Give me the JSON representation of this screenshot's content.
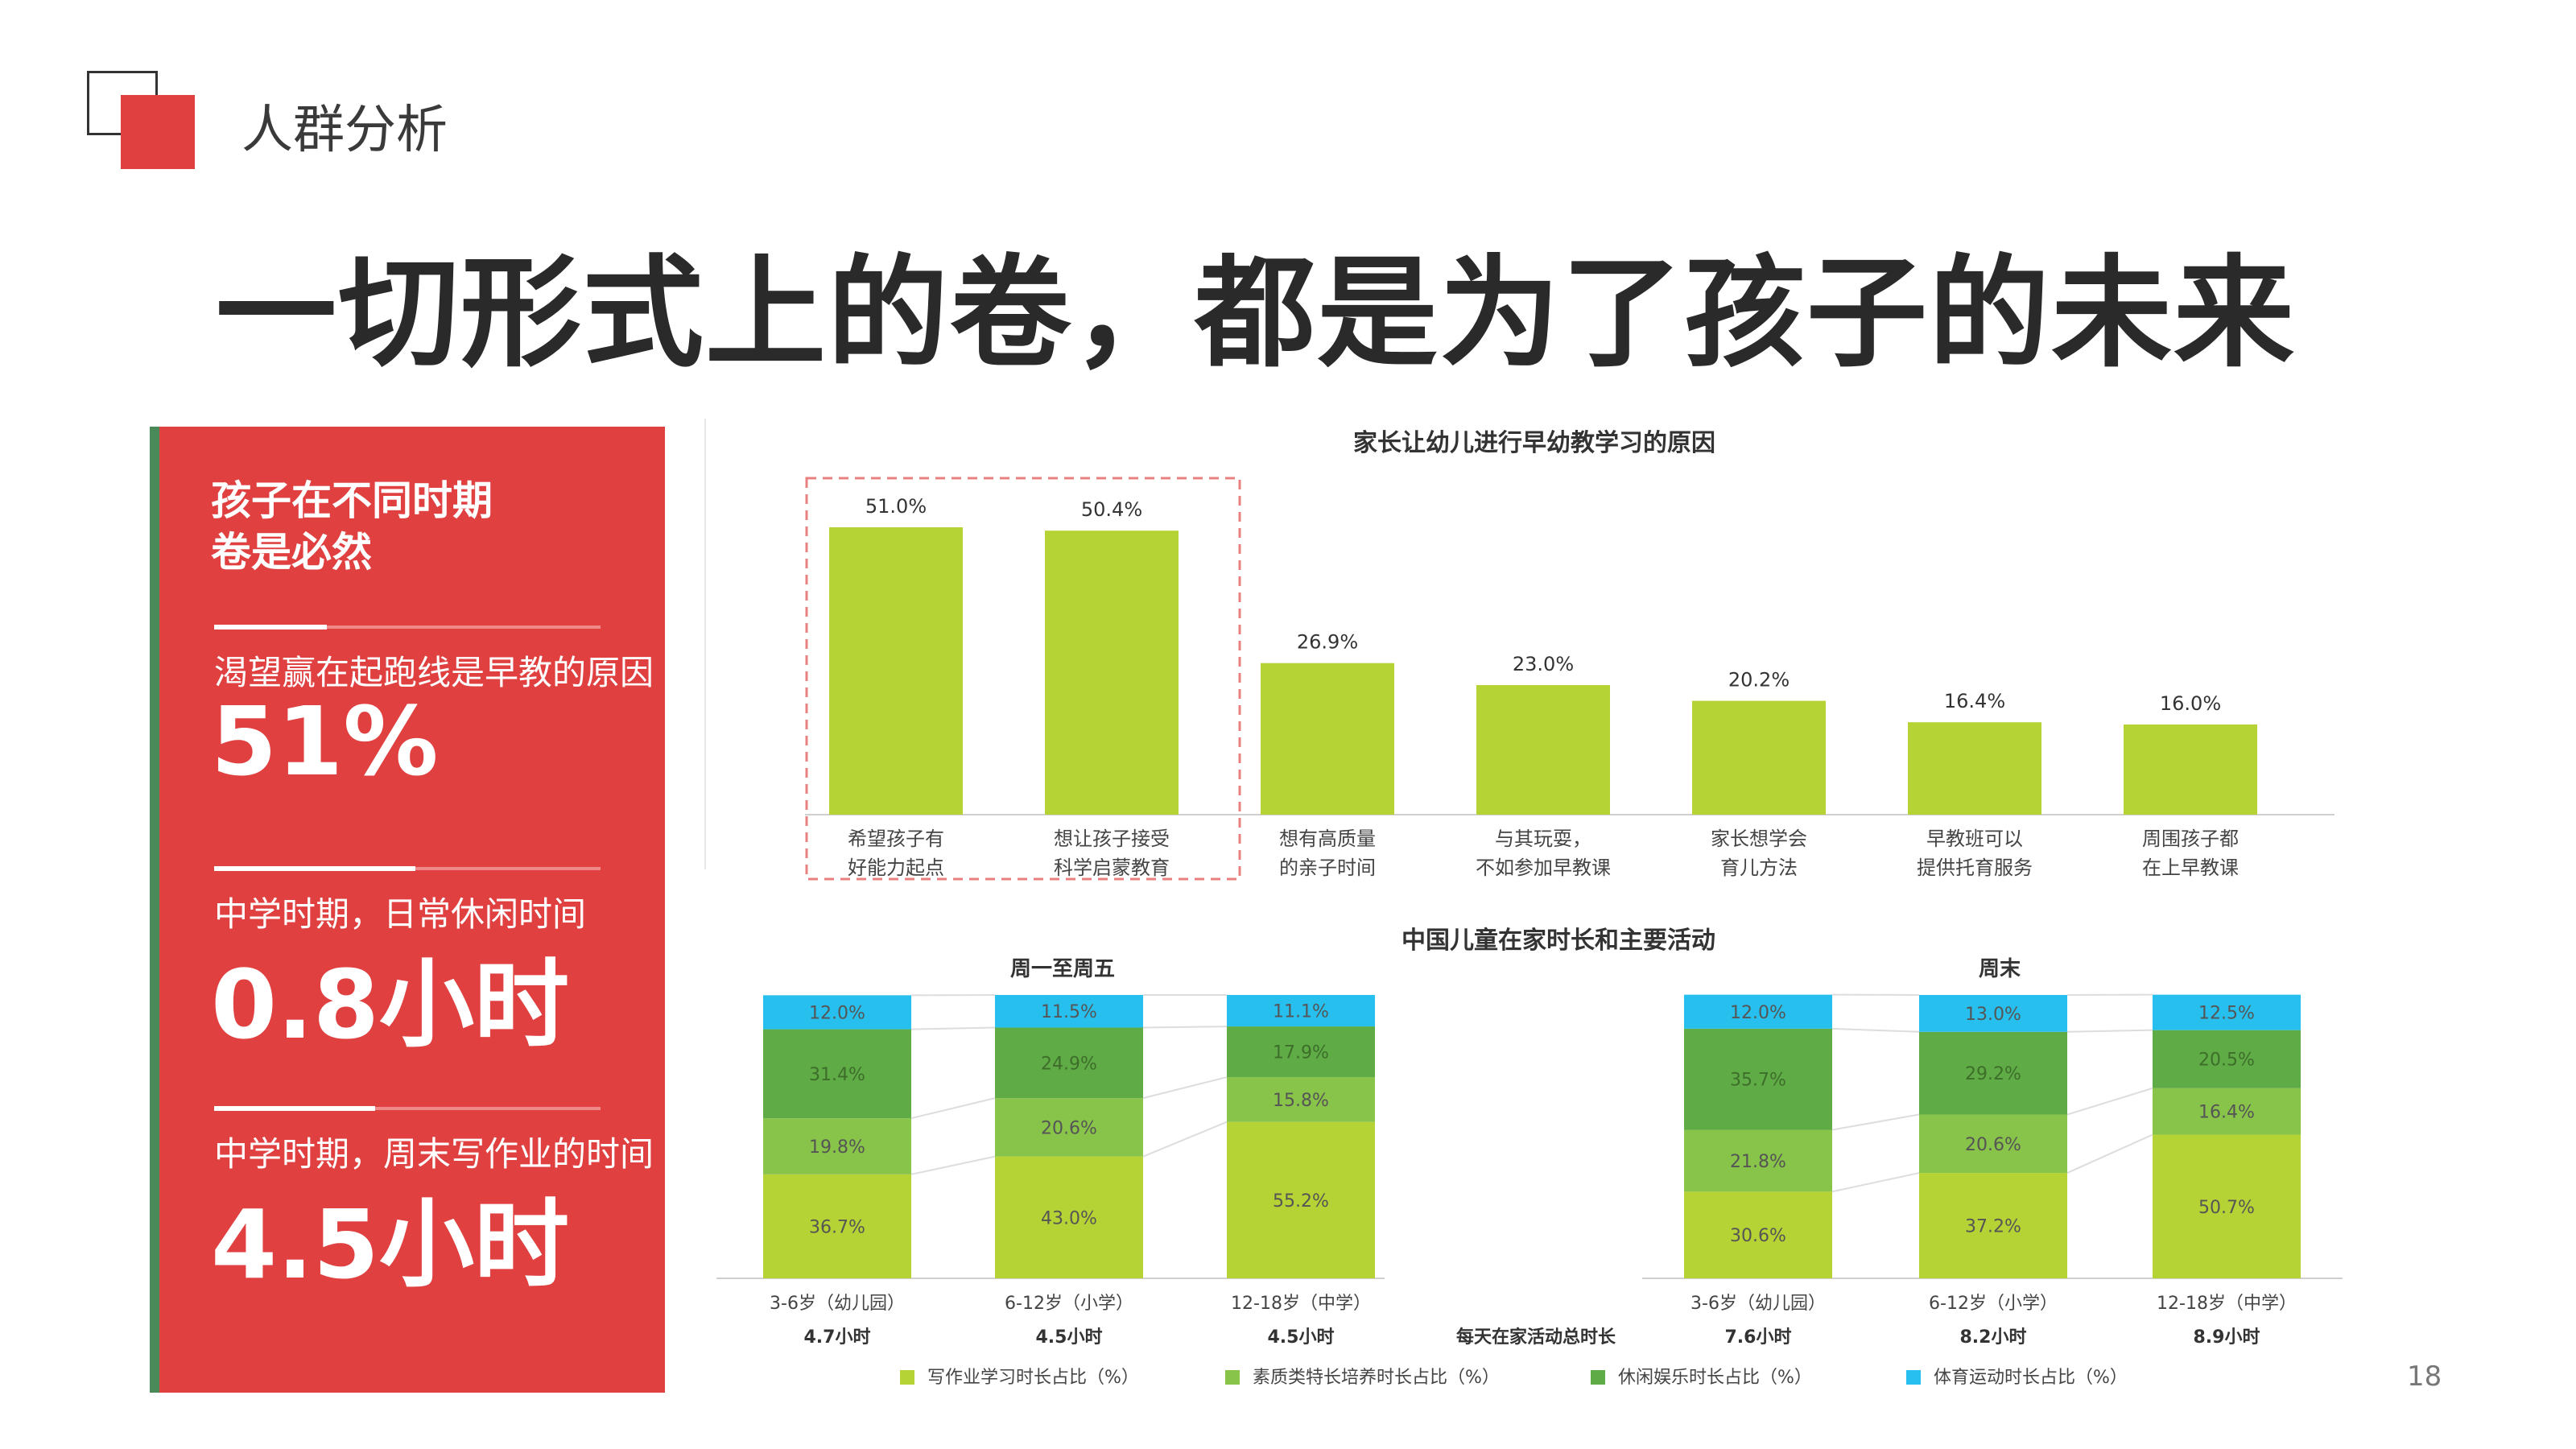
{
  "header": {
    "section": "人群分析",
    "title": "一切形式上的卷，都是为了孩子的未来"
  },
  "colors": {
    "accent": "#e04040",
    "bar_green": "#b5d334",
    "homework": "#b5d334",
    "quality": "#88c34a",
    "leisure": "#5fab46",
    "sports": "#27c0ee"
  },
  "panel": {
    "title_line1": "孩子在不同时期",
    "title_line2": "卷是必然",
    "stats": [
      {
        "label": "渴望赢在起跑线是早教的原因",
        "value": "51%"
      },
      {
        "label": "中学时期，日常休闲时间",
        "value": "0.8小时"
      },
      {
        "label": "中学时期，周末写作业的时间",
        "value": "4.5小时"
      }
    ]
  },
  "page_number": "18",
  "chart_data": [
    {
      "type": "bar",
      "title": "家长让幼儿进行早幼教学习的原因",
      "categories": [
        [
          "希望孩子有",
          "好能力起点"
        ],
        [
          "想让孩子接受",
          "科学启蒙教育"
        ],
        [
          "想有高质量",
          "的亲子时间"
        ],
        [
          "与其玩耍，",
          "不如参加早教课"
        ],
        [
          "家长想学会",
          "育儿方法"
        ],
        [
          "早教班可以",
          "提供托育服务"
        ],
        [
          "周围孩子都",
          "在上早教课"
        ]
      ],
      "values": [
        51.0,
        50.4,
        26.9,
        23.0,
        20.2,
        16.4,
        16.0
      ],
      "labels": [
        "51.0%",
        "50.4%",
        "26.9%",
        "23.0%",
        "20.2%",
        "16.4%",
        "16.0%"
      ],
      "highlighted": [
        0,
        1
      ],
      "ylim": [
        0,
        60
      ]
    },
    {
      "type": "bar",
      "title": "中国儿童在家时长和主要活动",
      "stacked": true,
      "total_label": "每天在家活动总时长",
      "series_names": [
        "写作业学习时长占比（%）",
        "素质类特长培养时长占比（%）",
        "休闲娱乐时长占比（%）",
        "体育运动时长占比（%）"
      ],
      "panels": [
        {
          "title": "周一至周五",
          "categories": [
            "3-6岁（幼儿园）",
            "6-12岁（小学）",
            "12-18岁（中学）"
          ],
          "totals": [
            "4.7小时",
            "4.5小时",
            "4.5小时"
          ],
          "series": [
            {
              "name": "写作业学习时长占比（%）",
              "values": [
                36.7,
                43.0,
                55.2
              ]
            },
            {
              "name": "素质类特长培养时长占比（%）",
              "values": [
                19.8,
                20.6,
                15.8
              ]
            },
            {
              "name": "休闲娱乐时长占比（%）",
              "values": [
                31.4,
                24.9,
                17.9
              ]
            },
            {
              "name": "体育运动时长占比（%）",
              "values": [
                12.0,
                11.5,
                11.1
              ]
            }
          ],
          "labels": [
            [
              "36.7%",
              "43.0%",
              "55.2%"
            ],
            [
              "19.8%",
              "20.6%",
              "15.8%"
            ],
            [
              "31.4%",
              "24.9%",
              "17.9%"
            ],
            [
              "12.0%",
              "11.5%",
              "11.1%"
            ]
          ]
        },
        {
          "title": "周末",
          "categories": [
            "3-6岁（幼儿园）",
            "6-12岁（小学）",
            "12-18岁（中学）"
          ],
          "totals": [
            "7.6小时",
            "8.2小时",
            "8.9小时"
          ],
          "series": [
            {
              "name": "写作业学习时长占比（%）",
              "values": [
                30.6,
                37.2,
                50.7
              ]
            },
            {
              "name": "素质类特长培养时长占比（%）",
              "values": [
                21.8,
                20.6,
                16.4
              ]
            },
            {
              "name": "休闲娱乐时长占比（%）",
              "values": [
                35.7,
                29.2,
                20.5
              ]
            },
            {
              "name": "体育运动时长占比（%）",
              "values": [
                12.0,
                13.0,
                12.5
              ]
            }
          ],
          "labels": [
            [
              "30.6%",
              "37.2%",
              "50.7%"
            ],
            [
              "21.8%",
              "20.6%",
              "16.4%"
            ],
            [
              "35.7%",
              "29.2%",
              "20.5%"
            ],
            [
              "12.0%",
              "13.0%",
              "12.5%"
            ]
          ]
        }
      ]
    }
  ]
}
